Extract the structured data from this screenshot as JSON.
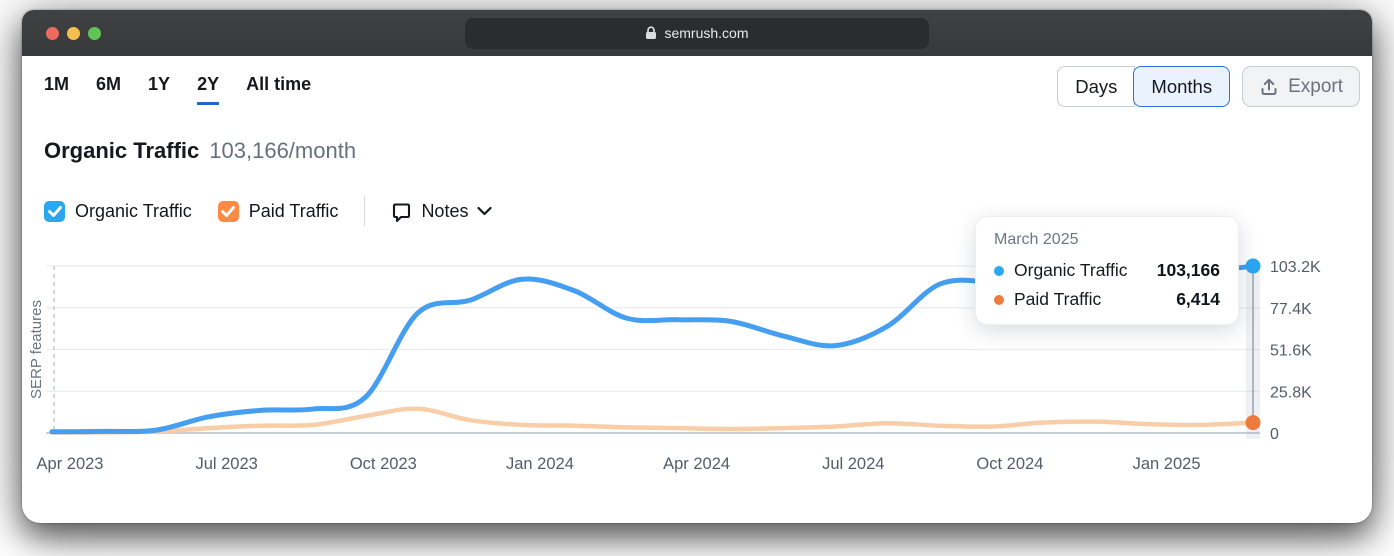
{
  "browser": {
    "url": "semrush.com"
  },
  "toolbar": {
    "ranges": [
      {
        "label": "1M",
        "active": false
      },
      {
        "label": "6M",
        "active": false
      },
      {
        "label": "1Y",
        "active": false
      },
      {
        "label": "2Y",
        "active": true
      },
      {
        "label": "All time",
        "active": false
      }
    ],
    "granularity": [
      {
        "label": "Days",
        "selected": false
      },
      {
        "label": "Months",
        "selected": true
      }
    ],
    "export_label": "Export"
  },
  "header": {
    "title": "Organic Traffic",
    "metric": "103,166/month"
  },
  "legend": {
    "items": [
      {
        "label": "Organic Traffic",
        "checked": true,
        "color": "#2BA7F0"
      },
      {
        "label": "Paid Traffic",
        "checked": true,
        "color": "#FF8A43"
      }
    ],
    "notes_label": "Notes"
  },
  "tooltip": {
    "title": "March 2025",
    "rows": [
      {
        "label": "Organic Traffic",
        "value": "103,166",
        "color": "#2BA7F0"
      },
      {
        "label": "Paid Traffic",
        "value": "6,414",
        "color": "#EE7A3C"
      }
    ]
  },
  "chart_data": {
    "type": "line",
    "x": [
      "Apr 2023",
      "May 2023",
      "Jun 2023",
      "Jul 2023",
      "Aug 2023",
      "Sep 2023",
      "Oct 2023",
      "Nov 2023",
      "Dec 2023",
      "Jan 2024",
      "Feb 2024",
      "Mar 2024",
      "Apr 2024",
      "May 2024",
      "Jun 2024",
      "Jul 2024",
      "Aug 2024",
      "Sep 2024",
      "Oct 2024",
      "Nov 2024",
      "Dec 2024",
      "Jan 2025",
      "Feb 2025",
      "Mar 2025"
    ],
    "series": [
      {
        "name": "Organic Traffic",
        "color": "#459EF0",
        "line_width": 5,
        "values": [
          800,
          1000,
          1800,
          10000,
          14000,
          14800,
          22000,
          74000,
          82000,
          95000,
          88000,
          71000,
          70000,
          69000,
          60000,
          54000,
          66000,
          92000,
          93000,
          89000,
          91000,
          94000,
          99000,
          103166
        ],
        "end_dot_color": "#2BA7F0"
      },
      {
        "name": "Paid Traffic",
        "color": "#F9CDA8",
        "line_width": 4.5,
        "values": [
          300,
          400,
          900,
          3000,
          4500,
          5000,
          10500,
          15000,
          8000,
          5000,
          4500,
          3500,
          3000,
          2500,
          3000,
          4000,
          6000,
          4500,
          4000,
          6500,
          7000,
          5500,
          5000,
          6414
        ],
        "end_dot_color": "#EE7A3C"
      }
    ],
    "x_tick_every": 3,
    "y_ticks": [
      {
        "value": 0,
        "label": "0"
      },
      {
        "value": 25800,
        "label": "25.8K"
      },
      {
        "value": 51600,
        "label": "51.6K"
      },
      {
        "value": 77400,
        "label": "77.4K"
      },
      {
        "value": 103200,
        "label": "103.2K"
      }
    ],
    "ylim": [
      0,
      103200
    ],
    "ylabel": "SERP features",
    "grid": true,
    "legend_position": "top-left",
    "highlight_index": 23
  }
}
